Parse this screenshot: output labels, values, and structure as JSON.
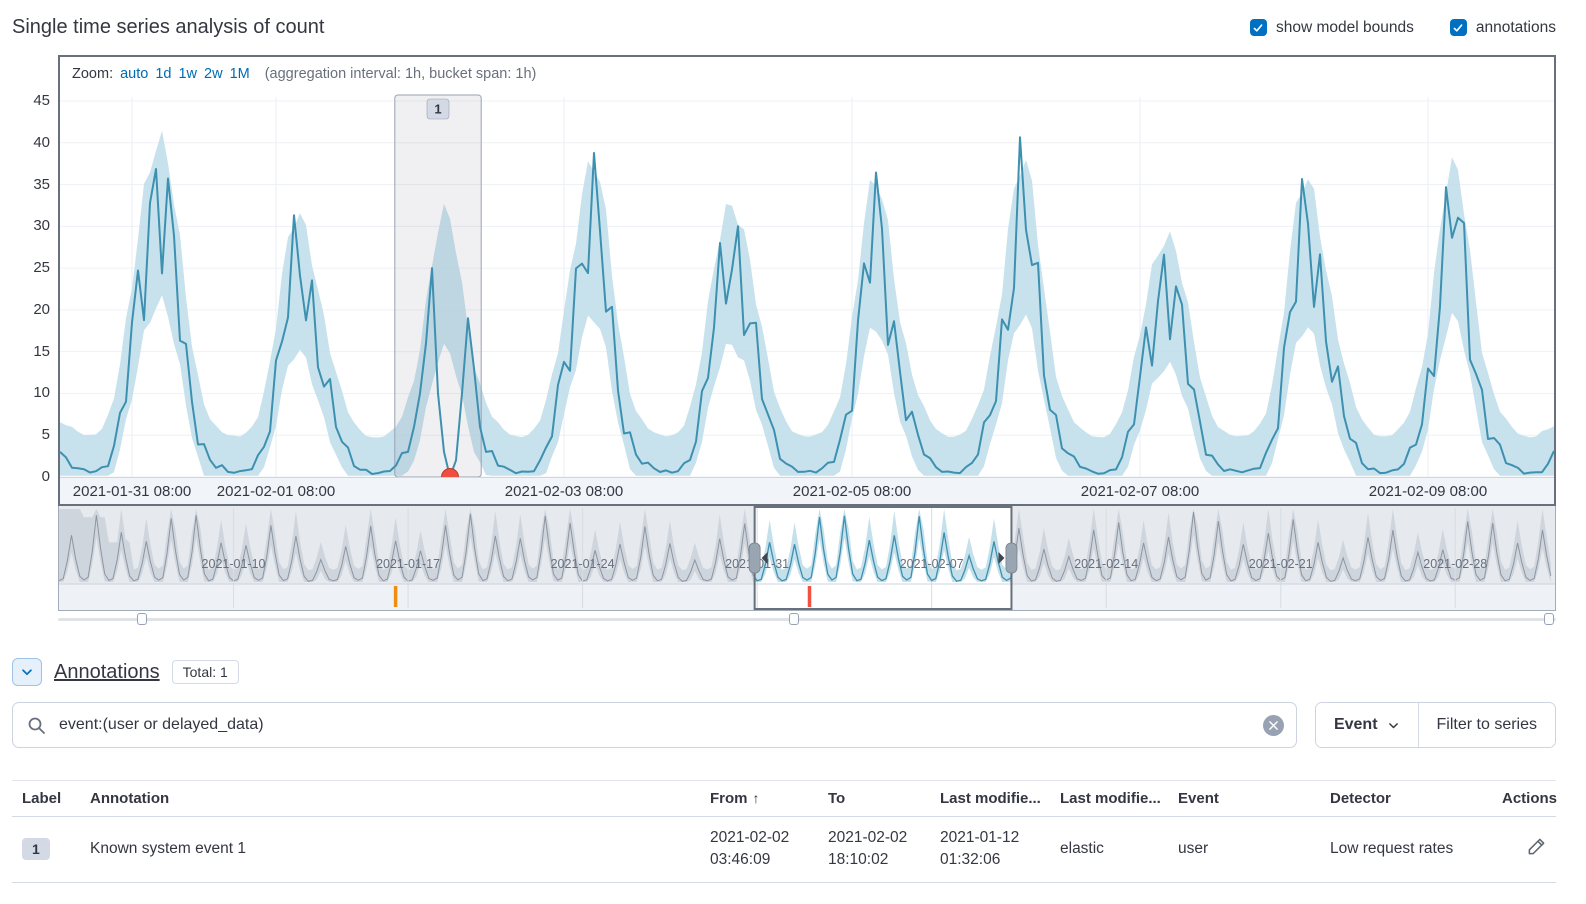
{
  "header": {
    "title": "Single time series analysis of count",
    "checkboxes": [
      {
        "label": "show model bounds",
        "checked": true
      },
      {
        "label": "annotations",
        "checked": true
      }
    ]
  },
  "chart": {
    "zoom_caption": "Zoom:",
    "zoom_links": [
      "auto",
      "1d",
      "1w",
      "2w",
      "1M"
    ],
    "aggregation_info": "(aggregation interval: 1h, bucket span: 1h)"
  },
  "chart_data": {
    "type": "line",
    "title": "Single time series analysis of count",
    "ylim": [
      0,
      45
    ],
    "legend": "model bounds area + actual value line",
    "colors": {
      "line": "#3d90b0",
      "bounds": "#bddde9",
      "anomaly": "#f04e3f"
    },
    "focus": {
      "start": "2021-01-30 20:00",
      "interval": "1h",
      "hours": 250,
      "yticks": [
        0,
        5,
        10,
        15,
        20,
        25,
        30,
        35,
        40,
        45
      ],
      "xticks": [
        {
          "label": "2021-01-31 08:00",
          "hour": 12
        },
        {
          "label": "2021-02-01 08:00",
          "hour": 36
        },
        {
          "label": "2021-02-03 08:00",
          "hour": 84
        },
        {
          "label": "2021-02-05 08:00",
          "hour": 132
        },
        {
          "label": "2021-02-07 08:00",
          "hour": 180
        },
        {
          "label": "2021-02-09 08:00",
          "hour": 228
        }
      ],
      "daily_shape": [
        0.02,
        0.02,
        0.02,
        0.03,
        0.05,
        0.09,
        0.16,
        0.26,
        0.4,
        0.56,
        0.72,
        0.88,
        1.0,
        0.93,
        0.8,
        0.63,
        0.47,
        0.33,
        0.22,
        0.15,
        0.1,
        0.06,
        0.04,
        0.03
      ],
      "daily_peaks": [
        30,
        38,
        27,
        25,
        33,
        30,
        29,
        31,
        26,
        31,
        30,
        28
      ],
      "noise": {
        "a": 0.24,
        "f1": 2.13,
        "b": 0.15,
        "f2": 0.71
      },
      "overrides": {
        "58": 3,
        "59": 6,
        "60": 10,
        "61": 16,
        "62": 25,
        "63": 10,
        "64": 3,
        "65": 0,
        "66": 2,
        "67": 10,
        "68": 19,
        "69": 13,
        "70": 6,
        "71": 3
      },
      "anomaly": {
        "hour_index": 65,
        "value": 0,
        "severity": "critical"
      },
      "annotation_region": {
        "label": "1",
        "from_hour": 55.8,
        "to_hour": 70.2
      }
    },
    "context": {
      "start_label": "2021-01-03",
      "days": 60,
      "ticks": [
        {
          "label": "2021-01-10",
          "day": 7
        },
        {
          "label": "2021-01-17",
          "day": 14
        },
        {
          "label": "2021-01-24",
          "day": 21
        },
        {
          "label": "2021-01-31",
          "day": 28
        },
        {
          "label": "2021-02-07",
          "day": 35
        },
        {
          "label": "2021-02-14",
          "day": 42
        },
        {
          "label": "2021-02-21",
          "day": 49
        },
        {
          "label": "2021-02-28",
          "day": 56
        }
      ],
      "selection": {
        "from_day": 27.9,
        "to_day": 38.2
      },
      "markers": [
        {
          "day": 13.5,
          "color": "#ef8d12"
        },
        {
          "day": 30.1,
          "color": "#f1513f"
        }
      ]
    }
  },
  "annotations": {
    "heading": "Annotations",
    "total_badge": "Total: 1",
    "search": {
      "value": "event:(user or delayed_data)"
    },
    "event_button": "Event",
    "filter_button": "Filter to series",
    "table": {
      "columns": [
        "Label",
        "Annotation",
        "From",
        "To",
        "Last modifie...",
        "Last modifie...",
        "Event",
        "Detector",
        "Actions"
      ],
      "rows": [
        {
          "label_badge": "1",
          "annotation": "Known system event 1",
          "from": "2021-02-02\n03:46:09",
          "to": "2021-02-02\n18:10:02",
          "last_modified": "2021-01-12\n01:32:06",
          "last_modifier": "elastic",
          "event": "user",
          "detector": "Low request rates"
        }
      ]
    }
  }
}
